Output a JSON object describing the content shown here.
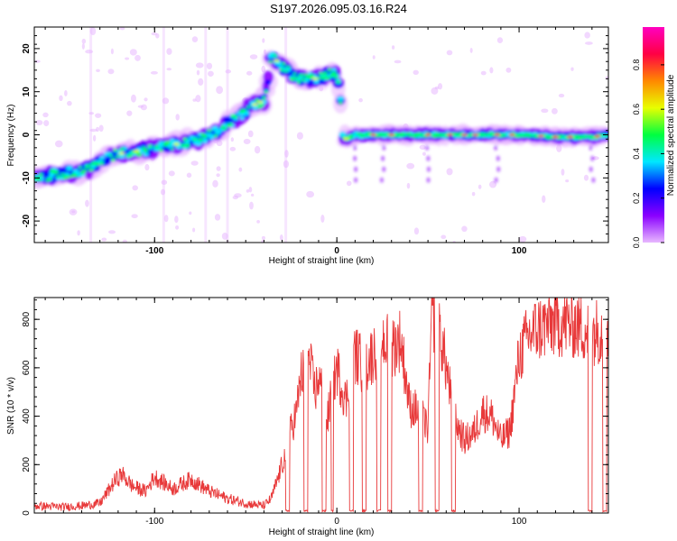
{
  "title": "S197.2026.095.03.16.R24",
  "colors": {
    "snr_line": "#e8393a",
    "axis": "#000000",
    "colormap": [
      "#e8b8ff",
      "#8a00ff",
      "#0000ff",
      "#00e8ff",
      "#00ff40",
      "#e8ff00",
      "#ff8800",
      "#ff0044",
      "#ff00c0"
    ]
  },
  "chart_data": [
    {
      "type": "heatmap",
      "xlabel": "Height of straight line (km)",
      "ylabel": "Frequency (Hz)",
      "xlim": [
        -166,
        149
      ],
      "ylim": [
        -25,
        25
      ],
      "x_ticks": [
        -100,
        0,
        100
      ],
      "y_ticks": [
        -20,
        -10,
        0,
        10,
        20
      ],
      "colorbar": {
        "label": "Normalized spectral amplitude",
        "range": [
          0,
          0.97
        ],
        "ticks": [
          0.0,
          0.2,
          0.4,
          0.6,
          0.8
        ]
      },
      "ridge": {
        "x": [
          -166,
          -150,
          -135,
          -125,
          -115,
          -105,
          -95,
          -85,
          -75,
          -65,
          -55,
          -45,
          -40,
          -35,
          -30,
          -25,
          -20,
          -15,
          -10,
          -5,
          0,
          5,
          10,
          20,
          40,
          60,
          80,
          100,
          120,
          140,
          149
        ],
        "y": [
          -10,
          -9,
          -8,
          -5,
          -4,
          -3.5,
          -2.5,
          -2,
          -1,
          1,
          4,
          7,
          8,
          18,
          16,
          14,
          13,
          13,
          13,
          14,
          14,
          -1,
          0,
          0,
          0,
          0,
          0,
          0,
          -0.5,
          -0.5,
          0
        ]
      }
    },
    {
      "type": "line",
      "xlabel": "Height of straight line (km)",
      "ylabel": "SNR (10 * v/v)",
      "xlim": [
        -166,
        149
      ],
      "ylim": [
        0,
        890
      ],
      "x_ticks": [
        -100,
        0,
        100
      ],
      "y_ticks": [
        0,
        200,
        400,
        600,
        800
      ],
      "series": [
        {
          "x": [
            -166,
            -150,
            -140,
            -130,
            -122,
            -118,
            -112,
            -105,
            -100,
            -90,
            -80,
            -70,
            -60,
            -50,
            -40,
            -36,
            -32,
            -28,
            -25,
            -22,
            -20,
            -15,
            -12,
            -10,
            -5,
            0,
            5,
            10,
            15,
            20,
            25,
            30,
            35,
            40,
            45,
            50,
            52,
            55,
            60,
            65,
            70,
            75,
            80,
            85,
            90,
            95,
            100,
            105,
            110,
            120,
            130,
            140,
            149
          ],
          "y": [
            30,
            25,
            30,
            40,
            130,
            160,
            110,
            90,
            150,
            100,
            140,
            90,
            60,
            40,
            30,
            60,
            150,
            250,
            350,
            420,
            560,
            620,
            500,
            560,
            400,
            600,
            460,
            660,
            600,
            660,
            720,
            680,
            720,
            440,
            420,
            350,
            800,
            820,
            600,
            380,
            300,
            330,
            420,
            400,
            300,
            340,
            650,
            730,
            760,
            790,
            780,
            750,
            760
          ]
        }
      ]
    }
  ]
}
